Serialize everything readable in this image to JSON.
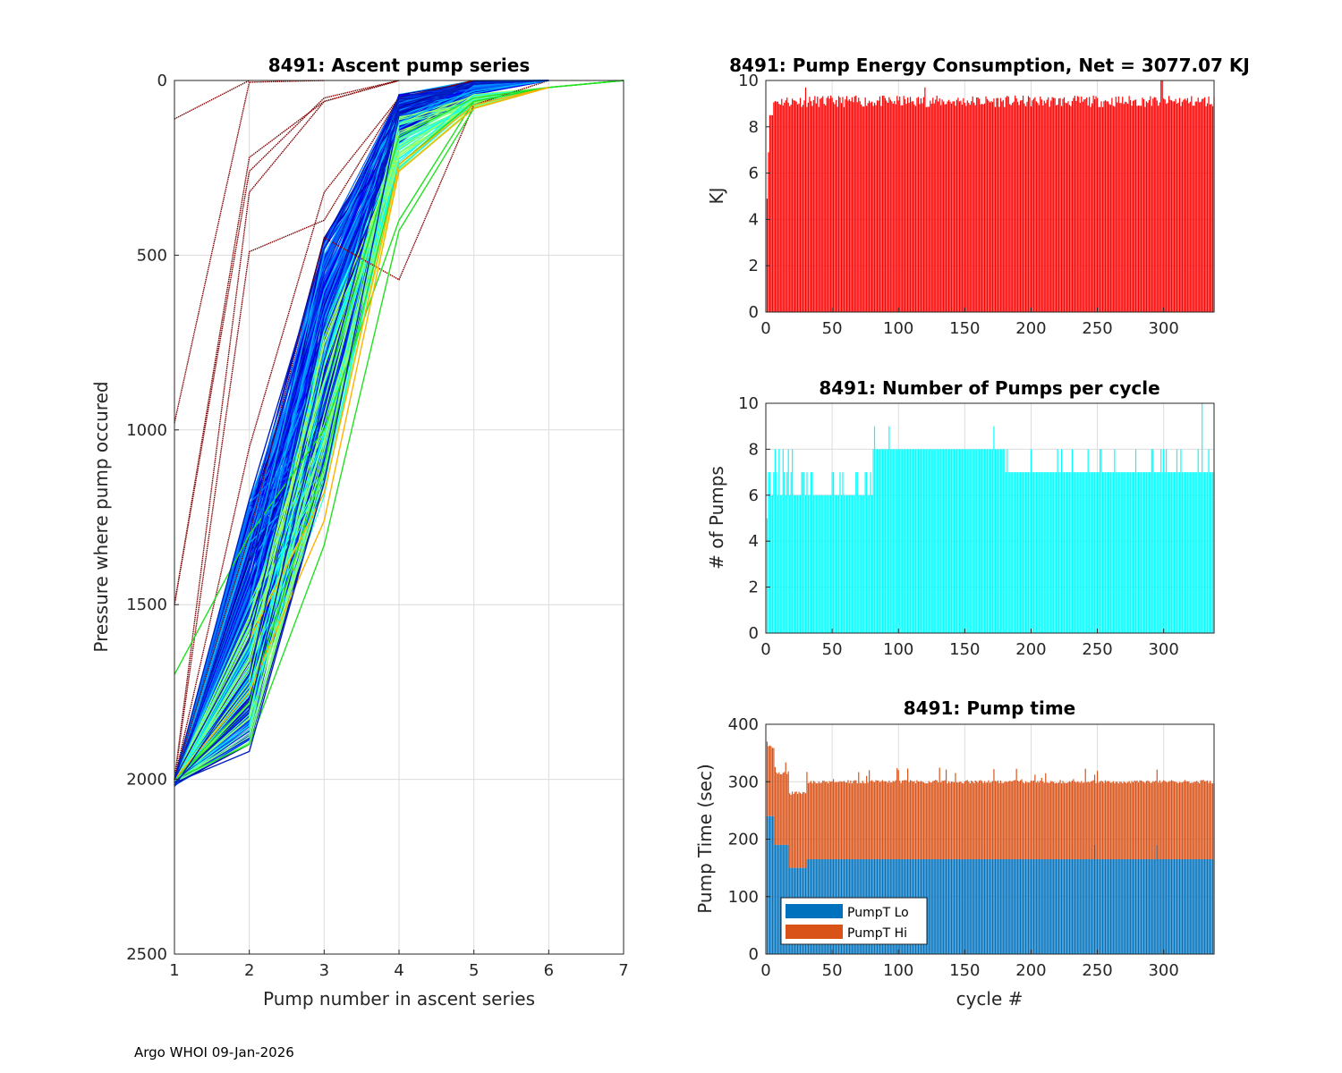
{
  "footer": "Argo WHOI 09-Jan-2026",
  "chart_data": [
    {
      "id": "ascent",
      "type": "line",
      "title": "8491: Ascent pump series",
      "xlabel": "Pump number in ascent series",
      "ylabel": "Pressure where pump occured",
      "xlim": [
        1,
        7
      ],
      "ylim": [
        0,
        2500
      ],
      "y_reversed": true,
      "grid": true,
      "xticks": [
        1,
        2,
        3,
        4,
        5,
        6,
        7
      ],
      "yticks": [
        0,
        500,
        1000,
        1500,
        2000,
        2500
      ],
      "colormap": "jet (by cycle)",
      "series_groups": [
        {
          "name": "early cycles (dark red)",
          "color": "#7f0000",
          "lines": [
            [
              110,
              0
            ],
            [
              980,
              5,
              0
            ],
            [
              1500,
              260,
              50,
              0
            ],
            [
              1500,
              220,
              60,
              0
            ],
            [
              2000,
              320,
              60,
              0
            ],
            [
              2000,
              490,
              400,
              50,
              0
            ],
            [
              2000,
              1050,
              320,
              50,
              0
            ],
            [
              2000,
              1300,
              450,
              570,
              70,
              0
            ]
          ]
        },
        {
          "name": "green cycles",
          "color": "#22e022",
          "lines": [
            [
              1700,
              1300,
              1000,
              400,
              60,
              20,
              0
            ],
            [
              2000,
              1900,
              1330,
              430,
              80,
              20,
              0
            ],
            [
              2000,
              1780,
              1100,
              240,
              60,
              20,
              0
            ],
            [
              2000,
              1800,
              900,
              160,
              50,
              20,
              0
            ]
          ]
        },
        {
          "name": "orange cycles",
          "color": "#ffb000",
          "lines": [
            [
              2000,
              1750,
              1260,
              260,
              80,
              20
            ],
            [
              2000,
              1600,
              1180,
              240,
              70,
              20
            ]
          ]
        },
        {
          "name": "cyan cycles",
          "color": "#00b0ff",
          "lines": [
            [
              2000,
              1500,
              600,
              120,
              30,
              0
            ],
            [
              2000,
              1400,
              500,
              100,
              30,
              0
            ]
          ]
        },
        {
          "name": "blue cycles (bulk)",
          "color": "#0020c0",
          "lines": [
            [
              2010,
              1920,
              1150,
              100,
              10,
              0
            ],
            [
              2010,
              1800,
              900,
              80,
              10,
              0
            ],
            [
              2000,
              1600,
              700,
              70,
              10,
              0
            ],
            [
              2000,
              1400,
              550,
              60,
              10,
              0
            ],
            [
              2000,
              1200,
              480,
              50,
              5,
              0
            ],
            [
              2020,
              1700,
              800,
              90,
              10,
              0
            ]
          ]
        }
      ]
    },
    {
      "id": "energy",
      "type": "bar",
      "title": "8491: Pump Energy Consumption,  Net = 3077.07 KJ",
      "xlabel": "",
      "ylabel": "KJ",
      "xlim": [
        0,
        338
      ],
      "ylim": [
        0,
        10
      ],
      "grid": true,
      "xticks": [
        0,
        50,
        100,
        150,
        200,
        250,
        300
      ],
      "yticks": [
        0,
        2,
        4,
        6,
        8,
        10
      ],
      "color": "#ff0000",
      "n_cycles": 338,
      "typical_value": 9.1,
      "notes": "Most cycles between 8.9 and 9.5 KJ; cycle 1 ~4.9, cycles 2-5 ~6.9-8.5; peak ~10 near cycle 300"
    },
    {
      "id": "pumps",
      "type": "bar",
      "title": "8491: Number of Pumps per cycle",
      "xlabel": "",
      "ylabel": "# of Pumps",
      "xlim": [
        0,
        338
      ],
      "ylim": [
        0,
        10
      ],
      "grid": true,
      "xticks": [
        0,
        50,
        100,
        150,
        200,
        250,
        300
      ],
      "yticks": [
        0,
        2,
        4,
        6,
        8,
        10
      ],
      "color": "#00ffff",
      "segments": [
        {
          "from": 1,
          "to": 1,
          "value": 5
        },
        {
          "from": 2,
          "to": 80,
          "value": 6,
          "occasional": 7,
          "occasional8": [
            7,
            10,
            13,
            17,
            20
          ]
        },
        {
          "from": 81,
          "to": 178,
          "value": 8,
          "occasional": 9
        },
        {
          "from": 179,
          "to": 338,
          "value": 7,
          "occasional": 8
        },
        {
          "from": 329,
          "to": 329,
          "value": 10
        }
      ]
    },
    {
      "id": "pumptime",
      "type": "bar",
      "stacked": true,
      "title": "8491: Pump time",
      "xlabel": "cycle #",
      "ylabel": "Pump Time (sec)",
      "xlim": [
        0,
        338
      ],
      "ylim": [
        0,
        400
      ],
      "grid": true,
      "xticks": [
        0,
        50,
        100,
        150,
        200,
        250,
        300
      ],
      "yticks": [
        0,
        100,
        200,
        300,
        400
      ],
      "legend": {
        "placement": "bottom-left",
        "entries": [
          "PumpT Lo",
          "PumpT Hi"
        ]
      },
      "series": [
        {
          "name": "PumpT Lo",
          "color": "#0072bd",
          "segments": [
            {
              "from": 1,
              "to": 6,
              "value": 240
            },
            {
              "from": 7,
              "to": 17,
              "value": 190
            },
            {
              "from": 18,
              "to": 30,
              "value": 150
            },
            {
              "from": 31,
              "to": 338,
              "value": 165
            }
          ]
        },
        {
          "name": "PumpT Hi",
          "color": "#d95319",
          "totals": [
            {
              "from": 1,
              "to": 6,
              "value": 360
            },
            {
              "from": 7,
              "to": 17,
              "value": 315
            },
            {
              "from": 18,
              "to": 30,
              "value": 280
            },
            {
              "from": 31,
              "to": 338,
              "value": 300
            }
          ]
        }
      ]
    }
  ],
  "tick_labels": {
    "ascent_x": [
      "1",
      "2",
      "3",
      "4",
      "5",
      "6",
      "7"
    ],
    "ascent_y": [
      "0",
      "500",
      "1000",
      "1500",
      "2000",
      "2500"
    ],
    "cycle_x": [
      "0",
      "50",
      "100",
      "150",
      "200",
      "250",
      "300"
    ],
    "energy_y": [
      "0",
      "2",
      "4",
      "6",
      "8",
      "10"
    ],
    "pumps_y": [
      "0",
      "2",
      "4",
      "6",
      "8",
      "10"
    ],
    "time_y": [
      "0",
      "100",
      "200",
      "300",
      "400"
    ]
  }
}
